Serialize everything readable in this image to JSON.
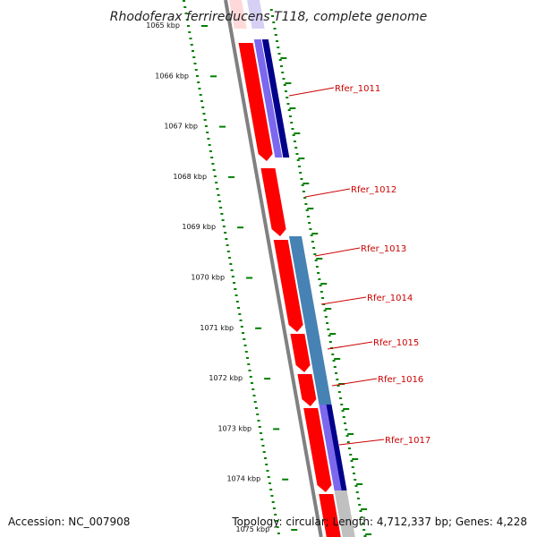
{
  "title": "Rhodoferax ferrireducens T118, complete genome",
  "footer": {
    "accession": "Accession: NC_007908",
    "summary": "Topology: circular; Length: 4,712,337 bp; Genes: 4,228"
  },
  "kbp_labels": [
    "1065 kbp",
    "1066 kbp",
    "1067 kbp",
    "1068 kbp",
    "1069 kbp",
    "1070 kbp",
    "1071 kbp",
    "1072 kbp",
    "1073 kbp",
    "1074 kbp",
    "1075 kbp"
  ],
  "gene_labels": [
    "Rfer_1011",
    "Rfer_1012",
    "Rfer_1013",
    "Rfer_1014",
    "Rfer_1015",
    "Rfer_1016",
    "Rfer_1017"
  ],
  "colors": {
    "cds": "#ff0000",
    "blue_dark": "#00008b",
    "blue_light": "#7b68ee",
    "steelblue": "#4682b4",
    "grey": "#c0c0c0",
    "backbone": "#808080",
    "ruler": "#008000",
    "label_line": "#cc0000",
    "label_text": "#cc0000"
  }
}
